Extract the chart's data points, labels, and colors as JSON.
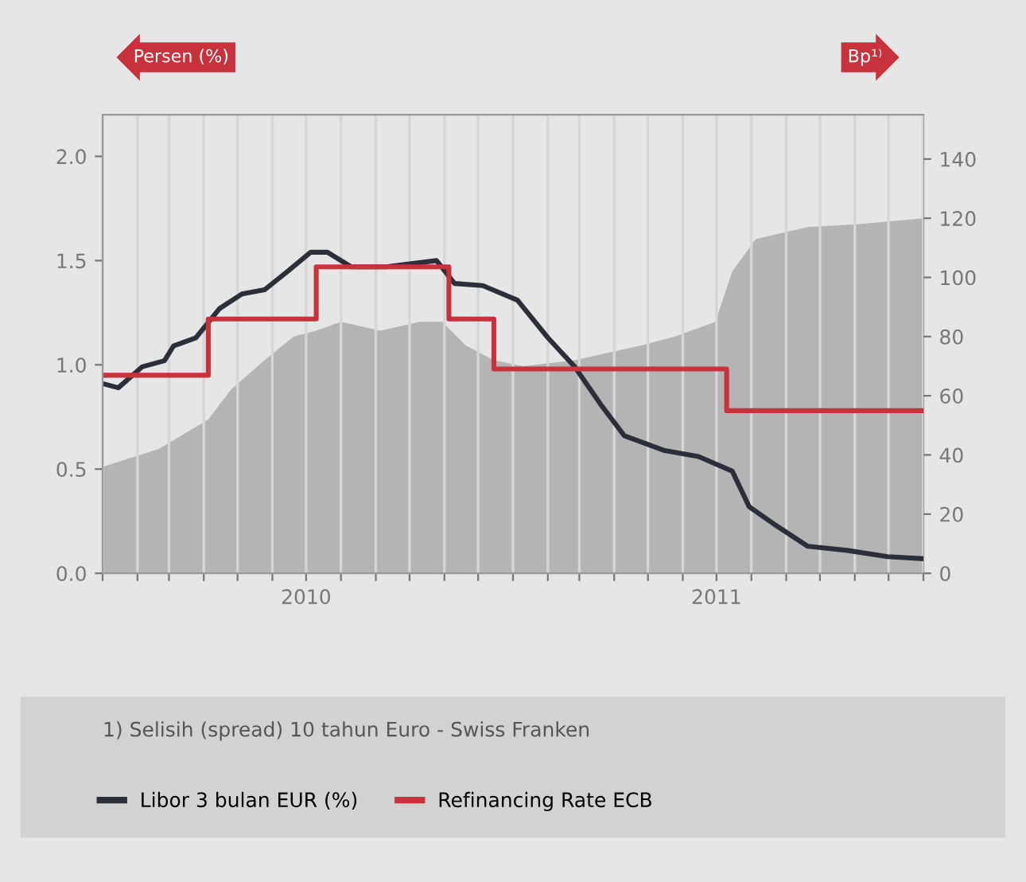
{
  "chart_data": {
    "type": "line",
    "ylabel": "Persen (%)",
    "y2label": "Bp¹⁾",
    "ylim": [
      0,
      2.2
    ],
    "yticks": [
      {
        "value": 0,
        "label": "0.0"
      },
      {
        "value": 0.5,
        "label": "0.5"
      },
      {
        "value": 1,
        "label": "1.0"
      },
      {
        "value": 1.5,
        "label": "1.5"
      },
      {
        "value": 2,
        "label": "2.0"
      }
    ],
    "y2lim": [
      0,
      155
    ],
    "y2ticks": [
      0,
      20,
      40,
      60,
      80,
      100,
      120,
      140
    ],
    "xlim": [
      "2010-01-01",
      "2012-01-01"
    ],
    "xticks": [
      {
        "value": "2010-01-01",
        "label": null
      },
      {
        "value": "2010-02-01",
        "label": null
      },
      {
        "value": "2010-03-01",
        "label": null
      },
      {
        "value": "2010-04-01",
        "label": null
      },
      {
        "value": "2010-05-01",
        "label": null
      },
      {
        "value": "2010-06-01",
        "label": null
      },
      {
        "value": "2010-07-01",
        "label": "2010"
      },
      {
        "value": "2010-08-01",
        "label": null
      },
      {
        "value": "2010-09-01",
        "label": null
      },
      {
        "value": "2010-10-01",
        "label": null
      },
      {
        "value": "2010-11-01",
        "label": null
      },
      {
        "value": "2010-12-01",
        "label": null
      },
      {
        "value": "2011-01-01",
        "label": null
      },
      {
        "value": "2011-02-01",
        "label": null
      },
      {
        "value": "2011-03-01",
        "label": null
      },
      {
        "value": "2011-04-01",
        "label": null
      },
      {
        "value": "2011-05-01",
        "label": null
      },
      {
        "value": "2011-06-01",
        "label": null
      },
      {
        "value": "2011-07-01",
        "label": "2011"
      },
      {
        "value": "2011-08-01",
        "label": null
      },
      {
        "value": "2011-09-01",
        "label": null
      },
      {
        "value": "2011-10-01",
        "label": null
      },
      {
        "value": "2011-11-01",
        "label": null
      },
      {
        "value": "2011-12-01",
        "label": null
      },
      {
        "value": "2012-01-01",
        "label": null
      }
    ],
    "grid": "x",
    "legend": "bottom",
    "series": [
      {
        "type": "area",
        "axis": "y2",
        "color": "#b4b4b4",
        "x": [
          "2010-01-01",
          "2010-02-20",
          "2010-04-05",
          "2010-04-25",
          "2010-05-25",
          "2010-06-20",
          "2010-07-10",
          "2010-08-01",
          "2010-09-05",
          "2010-10-10",
          "2010-10-30",
          "2010-11-20",
          "2010-12-15",
          "2011-01-10",
          "2011-02-25",
          "2011-04-25",
          "2011-05-25",
          "2011-06-30",
          "2011-07-15",
          "2011-08-05",
          "2011-09-20",
          "2011-11-05",
          "2012-01-01"
        ],
        "values": [
          36,
          42,
          52,
          62,
          72,
          80,
          82,
          85,
          82,
          85,
          85,
          77,
          72,
          70,
          72,
          77,
          80,
          85,
          102,
          113,
          117,
          118,
          120
        ]
      },
      {
        "name": "Libor 3 bulan EUR (%)",
        "color": "#2b2f3a",
        "x": [
          "2010-01-01",
          "2010-01-15",
          "2010-02-05",
          "2010-02-25",
          "2010-03-05",
          "2010-03-25",
          "2010-04-15",
          "2010-05-05",
          "2010-05-25",
          "2010-06-15",
          "2010-07-05",
          "2010-07-20",
          "2010-08-10",
          "2010-09-10",
          "2010-10-25",
          "2010-11-10",
          "2010-12-05",
          "2011-01-05",
          "2011-02-01",
          "2011-02-25",
          "2011-03-20",
          "2011-04-10",
          "2011-05-15",
          "2011-06-15",
          "2011-07-15",
          "2011-07-30",
          "2011-08-20",
          "2011-09-20",
          "2011-10-25",
          "2011-11-30",
          "2012-01-01"
        ],
        "values": [
          0.91,
          0.89,
          0.99,
          1.02,
          1.09,
          1.13,
          1.27,
          1.34,
          1.36,
          1.45,
          1.54,
          1.54,
          1.47,
          1.47,
          1.5,
          1.39,
          1.38,
          1.31,
          1.13,
          0.99,
          0.81,
          0.66,
          0.59,
          0.56,
          0.49,
          0.32,
          0.24,
          0.13,
          0.11,
          0.08,
          0.07
        ]
      },
      {
        "name": "Refinancing Rate ECB",
        "type": "step",
        "color": "#c8323c",
        "x": [
          "2010-01-01",
          "2010-04-05",
          "2010-07-10",
          "2010-11-05",
          "2010-12-15",
          "2011-07-10",
          "2012-01-01"
        ],
        "values": [
          0.95,
          1.22,
          1.47,
          1.22,
          0.98,
          0.78,
          0.78
        ]
      }
    ],
    "annotations": [
      "1) Selisih (spread) 10 tahun Euro - Swiss Franken"
    ]
  }
}
